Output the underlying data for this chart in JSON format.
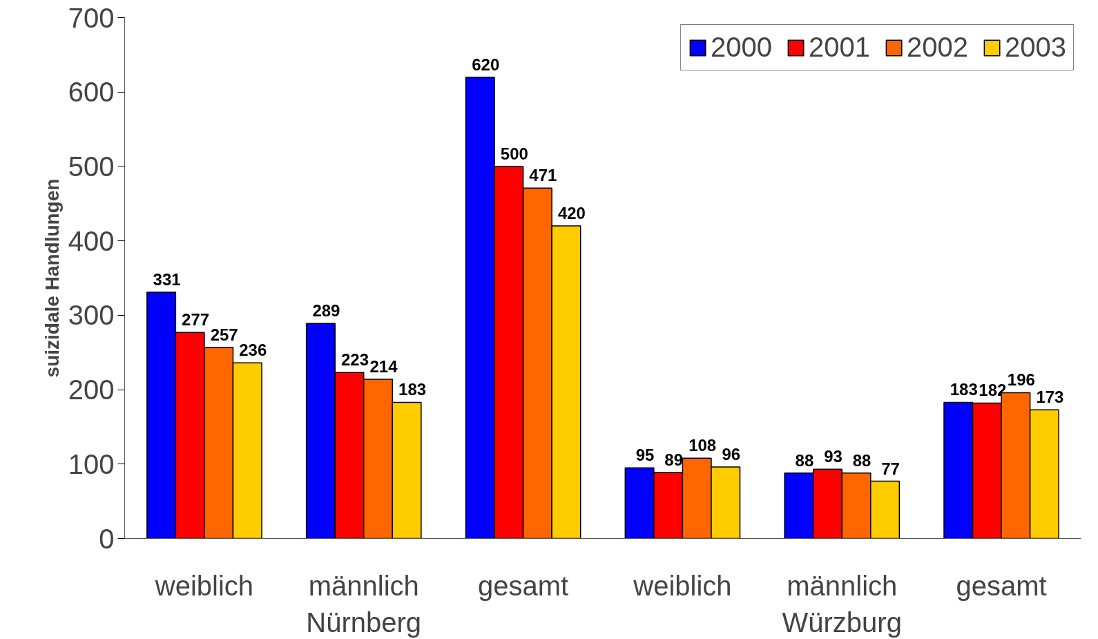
{
  "chart_data": {
    "type": "bar",
    "ylabel": "suizidale Handlungen",
    "categories": [
      "weiblich",
      "männlich",
      "gesamt",
      "weiblich",
      "männlich",
      "gesamt"
    ],
    "series": [
      {
        "name": "2000",
        "color": "#0000ff",
        "values": [
          331,
          289,
          620,
          95,
          88,
          183
        ]
      },
      {
        "name": "2001",
        "color": "#ff0000",
        "values": [
          277,
          223,
          500,
          89,
          93,
          182
        ]
      },
      {
        "name": "2002",
        "color": "#ff6600",
        "values": [
          257,
          214,
          471,
          108,
          88,
          196
        ]
      },
      {
        "name": "2003",
        "color": "#ffcc00",
        "values": [
          236,
          183,
          420,
          96,
          77,
          173
        ]
      }
    ],
    "annotations": [
      "Nürnberg",
      "Würzburg"
    ],
    "ylim": [
      0,
      700
    ],
    "yticks": [
      0,
      100,
      200,
      300,
      400,
      500,
      600,
      700
    ],
    "data_labels": true,
    "grid": false,
    "legend": "top right"
  }
}
